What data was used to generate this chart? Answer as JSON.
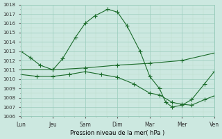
{
  "title": "",
  "xlabel": "Pression niveau de la mer( hPa )",
  "ylim": [
    1006,
    1018
  ],
  "yticks": [
    1006,
    1007,
    1008,
    1009,
    1010,
    1011,
    1012,
    1013,
    1014,
    1015,
    1016,
    1017,
    1018
  ],
  "xtick_labels": [
    "Lun",
    "Jeu",
    "Sam",
    "Dim",
    "Mar",
    "Mer",
    "Ven"
  ],
  "xtick_pos": [
    0,
    1,
    2,
    3,
    4,
    5,
    6
  ],
  "bg_color": "#cce8e0",
  "grid_color_major": "#99ccbb",
  "grid_color_minor": "#bbddcc",
  "line_color": "#1a6b2a",
  "line1_x": [
    0.0,
    0.3,
    0.6,
    1.0,
    1.3,
    1.7,
    2.0,
    2.3,
    2.7,
    3.0,
    3.3,
    3.7,
    4.0,
    4.3,
    4.5,
    4.7,
    5.0,
    5.3,
    5.7,
    6.0
  ],
  "line1_y": [
    1013.0,
    1012.3,
    1011.5,
    1011.0,
    1012.2,
    1014.5,
    1016.0,
    1016.8,
    1017.5,
    1017.2,
    1015.7,
    1013.0,
    1010.3,
    1009.0,
    1007.5,
    1007.0,
    1007.2,
    1007.8,
    1009.5,
    1010.8
  ],
  "line2_x": [
    0.0,
    1.0,
    2.0,
    3.0,
    4.0,
    5.0,
    6.0
  ],
  "line2_y": [
    1011.0,
    1011.0,
    1011.2,
    1011.5,
    1011.7,
    1012.0,
    1012.8
  ],
  "line3_x": [
    0.0,
    0.5,
    1.0,
    1.5,
    2.0,
    2.5,
    3.0,
    3.5,
    4.0,
    4.3,
    4.7,
    5.0,
    5.3,
    5.7,
    6.0
  ],
  "line3_y": [
    1010.5,
    1010.3,
    1010.3,
    1010.5,
    1010.8,
    1010.5,
    1010.2,
    1009.5,
    1008.5,
    1008.3,
    1007.5,
    1007.3,
    1007.2,
    1007.8,
    1008.2
  ],
  "marker": "+",
  "markersize": 4.0,
  "linewidth": 0.8,
  "figsize": [
    3.2,
    2.0
  ],
  "dpi": 100
}
